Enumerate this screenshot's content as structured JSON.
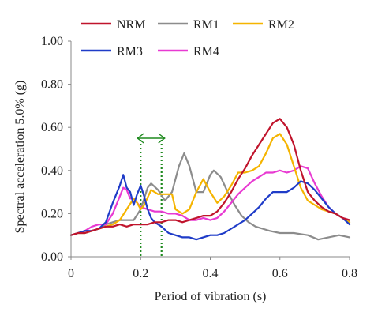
{
  "chart_data": {
    "type": "line",
    "xlabel": "Period of vibration (s)",
    "ylabel": "Spectral acceleration 5.0% (g)",
    "xlim": [
      0,
      0.8
    ],
    "ylim": [
      0,
      1.0
    ],
    "x_ticks": [
      0,
      0.2,
      0.4,
      0.6,
      0.8
    ],
    "x_tick_labels": [
      "0",
      "0.2",
      "0.4",
      "0.6",
      "0.8"
    ],
    "y_ticks": [
      0,
      0.2,
      0.4,
      0.6,
      0.8,
      1.0
    ],
    "y_tick_labels": [
      "0.00",
      "0.20",
      "0.40",
      "0.60",
      "0.80",
      "1.00"
    ],
    "grid": false,
    "legend_position": "top",
    "annotation": {
      "type": "period-range",
      "x_start": 0.2,
      "x_end": 0.26,
      "color": "#1f8a1f"
    },
    "series": [
      {
        "name": "NRM",
        "color": "#c0142c",
        "points": [
          [
            0,
            0.1
          ],
          [
            0.02,
            0.11
          ],
          [
            0.04,
            0.11
          ],
          [
            0.06,
            0.12
          ],
          [
            0.08,
            0.13
          ],
          [
            0.1,
            0.14
          ],
          [
            0.12,
            0.14
          ],
          [
            0.14,
            0.15
          ],
          [
            0.16,
            0.14
          ],
          [
            0.18,
            0.15
          ],
          [
            0.2,
            0.15
          ],
          [
            0.22,
            0.15
          ],
          [
            0.24,
            0.16
          ],
          [
            0.26,
            0.16
          ],
          [
            0.28,
            0.17
          ],
          [
            0.3,
            0.17
          ],
          [
            0.32,
            0.16
          ],
          [
            0.34,
            0.17
          ],
          [
            0.36,
            0.18
          ],
          [
            0.38,
            0.19
          ],
          [
            0.4,
            0.19
          ],
          [
            0.42,
            0.21
          ],
          [
            0.44,
            0.25
          ],
          [
            0.46,
            0.3
          ],
          [
            0.48,
            0.36
          ],
          [
            0.5,
            0.41
          ],
          [
            0.52,
            0.47
          ],
          [
            0.54,
            0.52
          ],
          [
            0.56,
            0.57
          ],
          [
            0.58,
            0.62
          ],
          [
            0.6,
            0.64
          ],
          [
            0.62,
            0.6
          ],
          [
            0.64,
            0.52
          ],
          [
            0.66,
            0.4
          ],
          [
            0.68,
            0.3
          ],
          [
            0.7,
            0.26
          ],
          [
            0.72,
            0.23
          ],
          [
            0.74,
            0.21
          ],
          [
            0.76,
            0.2
          ],
          [
            0.78,
            0.18
          ],
          [
            0.8,
            0.17
          ]
        ]
      },
      {
        "name": "RM1",
        "color": "#8c8c8c",
        "points": [
          [
            0,
            0.1
          ],
          [
            0.02,
            0.11
          ],
          [
            0.04,
            0.11
          ],
          [
            0.06,
            0.12
          ],
          [
            0.08,
            0.13
          ],
          [
            0.1,
            0.15
          ],
          [
            0.12,
            0.16
          ],
          [
            0.14,
            0.17
          ],
          [
            0.16,
            0.17
          ],
          [
            0.18,
            0.17
          ],
          [
            0.2,
            0.22
          ],
          [
            0.22,
            0.32
          ],
          [
            0.23,
            0.34
          ],
          [
            0.25,
            0.31
          ],
          [
            0.27,
            0.26
          ],
          [
            0.29,
            0.3
          ],
          [
            0.31,
            0.42
          ],
          [
            0.325,
            0.48
          ],
          [
            0.34,
            0.42
          ],
          [
            0.36,
            0.3
          ],
          [
            0.38,
            0.3
          ],
          [
            0.4,
            0.38
          ],
          [
            0.41,
            0.4
          ],
          [
            0.43,
            0.37
          ],
          [
            0.45,
            0.3
          ],
          [
            0.47,
            0.24
          ],
          [
            0.49,
            0.19
          ],
          [
            0.51,
            0.16
          ],
          [
            0.53,
            0.14
          ],
          [
            0.55,
            0.13
          ],
          [
            0.57,
            0.12
          ],
          [
            0.6,
            0.11
          ],
          [
            0.64,
            0.11
          ],
          [
            0.68,
            0.1
          ],
          [
            0.71,
            0.08
          ],
          [
            0.74,
            0.09
          ],
          [
            0.77,
            0.1
          ],
          [
            0.8,
            0.09
          ]
        ]
      },
      {
        "name": "RM2",
        "color": "#f5b400",
        "points": [
          [
            0,
            0.1
          ],
          [
            0.02,
            0.11
          ],
          [
            0.04,
            0.11
          ],
          [
            0.06,
            0.12
          ],
          [
            0.08,
            0.13
          ],
          [
            0.1,
            0.14
          ],
          [
            0.12,
            0.15
          ],
          [
            0.14,
            0.17
          ],
          [
            0.16,
            0.22
          ],
          [
            0.18,
            0.27
          ],
          [
            0.19,
            0.25
          ],
          [
            0.2,
            0.22
          ],
          [
            0.21,
            0.24
          ],
          [
            0.23,
            0.31
          ],
          [
            0.25,
            0.29
          ],
          [
            0.27,
            0.29
          ],
          [
            0.29,
            0.29
          ],
          [
            0.3,
            0.22
          ],
          [
            0.32,
            0.2
          ],
          [
            0.34,
            0.22
          ],
          [
            0.36,
            0.3
          ],
          [
            0.38,
            0.36
          ],
          [
            0.4,
            0.3
          ],
          [
            0.42,
            0.25
          ],
          [
            0.44,
            0.28
          ],
          [
            0.46,
            0.33
          ],
          [
            0.48,
            0.39
          ],
          [
            0.5,
            0.39
          ],
          [
            0.52,
            0.4
          ],
          [
            0.54,
            0.42
          ],
          [
            0.56,
            0.48
          ],
          [
            0.58,
            0.55
          ],
          [
            0.6,
            0.57
          ],
          [
            0.62,
            0.52
          ],
          [
            0.64,
            0.42
          ],
          [
            0.66,
            0.32
          ],
          [
            0.68,
            0.26
          ],
          [
            0.7,
            0.24
          ],
          [
            0.72,
            0.22
          ],
          [
            0.74,
            0.21
          ],
          [
            0.76,
            0.2
          ],
          [
            0.78,
            0.18
          ],
          [
            0.8,
            0.16
          ]
        ]
      },
      {
        "name": "RM3",
        "color": "#1f3cc8",
        "points": [
          [
            0,
            0.1
          ],
          [
            0.02,
            0.11
          ],
          [
            0.04,
            0.12
          ],
          [
            0.06,
            0.12
          ],
          [
            0.08,
            0.13
          ],
          [
            0.1,
            0.16
          ],
          [
            0.12,
            0.25
          ],
          [
            0.14,
            0.33
          ],
          [
            0.15,
            0.38
          ],
          [
            0.16,
            0.32
          ],
          [
            0.17,
            0.3
          ],
          [
            0.18,
            0.24
          ],
          [
            0.19,
            0.29
          ],
          [
            0.2,
            0.33
          ],
          [
            0.21,
            0.28
          ],
          [
            0.22,
            0.22
          ],
          [
            0.23,
            0.18
          ],
          [
            0.24,
            0.16
          ],
          [
            0.26,
            0.14
          ],
          [
            0.28,
            0.11
          ],
          [
            0.3,
            0.1
          ],
          [
            0.32,
            0.09
          ],
          [
            0.34,
            0.09
          ],
          [
            0.36,
            0.08
          ],
          [
            0.38,
            0.09
          ],
          [
            0.4,
            0.1
          ],
          [
            0.42,
            0.1
          ],
          [
            0.44,
            0.11
          ],
          [
            0.46,
            0.13
          ],
          [
            0.48,
            0.15
          ],
          [
            0.5,
            0.17
          ],
          [
            0.52,
            0.2
          ],
          [
            0.54,
            0.23
          ],
          [
            0.56,
            0.27
          ],
          [
            0.58,
            0.3
          ],
          [
            0.6,
            0.3
          ],
          [
            0.62,
            0.3
          ],
          [
            0.64,
            0.32
          ],
          [
            0.66,
            0.35
          ],
          [
            0.68,
            0.34
          ],
          [
            0.7,
            0.31
          ],
          [
            0.72,
            0.27
          ],
          [
            0.74,
            0.23
          ],
          [
            0.76,
            0.2
          ],
          [
            0.78,
            0.18
          ],
          [
            0.8,
            0.15
          ]
        ]
      },
      {
        "name": "RM4",
        "color": "#e83ad2",
        "points": [
          [
            0,
            0.1
          ],
          [
            0.02,
            0.11
          ],
          [
            0.04,
            0.12
          ],
          [
            0.06,
            0.14
          ],
          [
            0.08,
            0.15
          ],
          [
            0.1,
            0.15
          ],
          [
            0.12,
            0.2
          ],
          [
            0.14,
            0.28
          ],
          [
            0.15,
            0.32
          ],
          [
            0.16,
            0.31
          ],
          [
            0.17,
            0.27
          ],
          [
            0.18,
            0.27
          ],
          [
            0.2,
            0.23
          ],
          [
            0.22,
            0.22
          ],
          [
            0.24,
            0.21
          ],
          [
            0.26,
            0.21
          ],
          [
            0.28,
            0.2
          ],
          [
            0.3,
            0.2
          ],
          [
            0.32,
            0.19
          ],
          [
            0.34,
            0.17
          ],
          [
            0.36,
            0.17
          ],
          [
            0.38,
            0.18
          ],
          [
            0.4,
            0.17
          ],
          [
            0.42,
            0.18
          ],
          [
            0.44,
            0.21
          ],
          [
            0.46,
            0.25
          ],
          [
            0.48,
            0.29
          ],
          [
            0.5,
            0.32
          ],
          [
            0.52,
            0.35
          ],
          [
            0.54,
            0.37
          ],
          [
            0.56,
            0.39
          ],
          [
            0.58,
            0.39
          ],
          [
            0.6,
            0.4
          ],
          [
            0.62,
            0.39
          ],
          [
            0.64,
            0.4
          ],
          [
            0.66,
            0.42
          ],
          [
            0.68,
            0.41
          ],
          [
            0.7,
            0.34
          ],
          [
            0.72,
            0.28
          ],
          [
            0.74,
            0.23
          ],
          [
            0.76,
            0.2
          ],
          [
            0.78,
            0.18
          ],
          [
            0.8,
            0.17
          ]
        ]
      }
    ]
  }
}
